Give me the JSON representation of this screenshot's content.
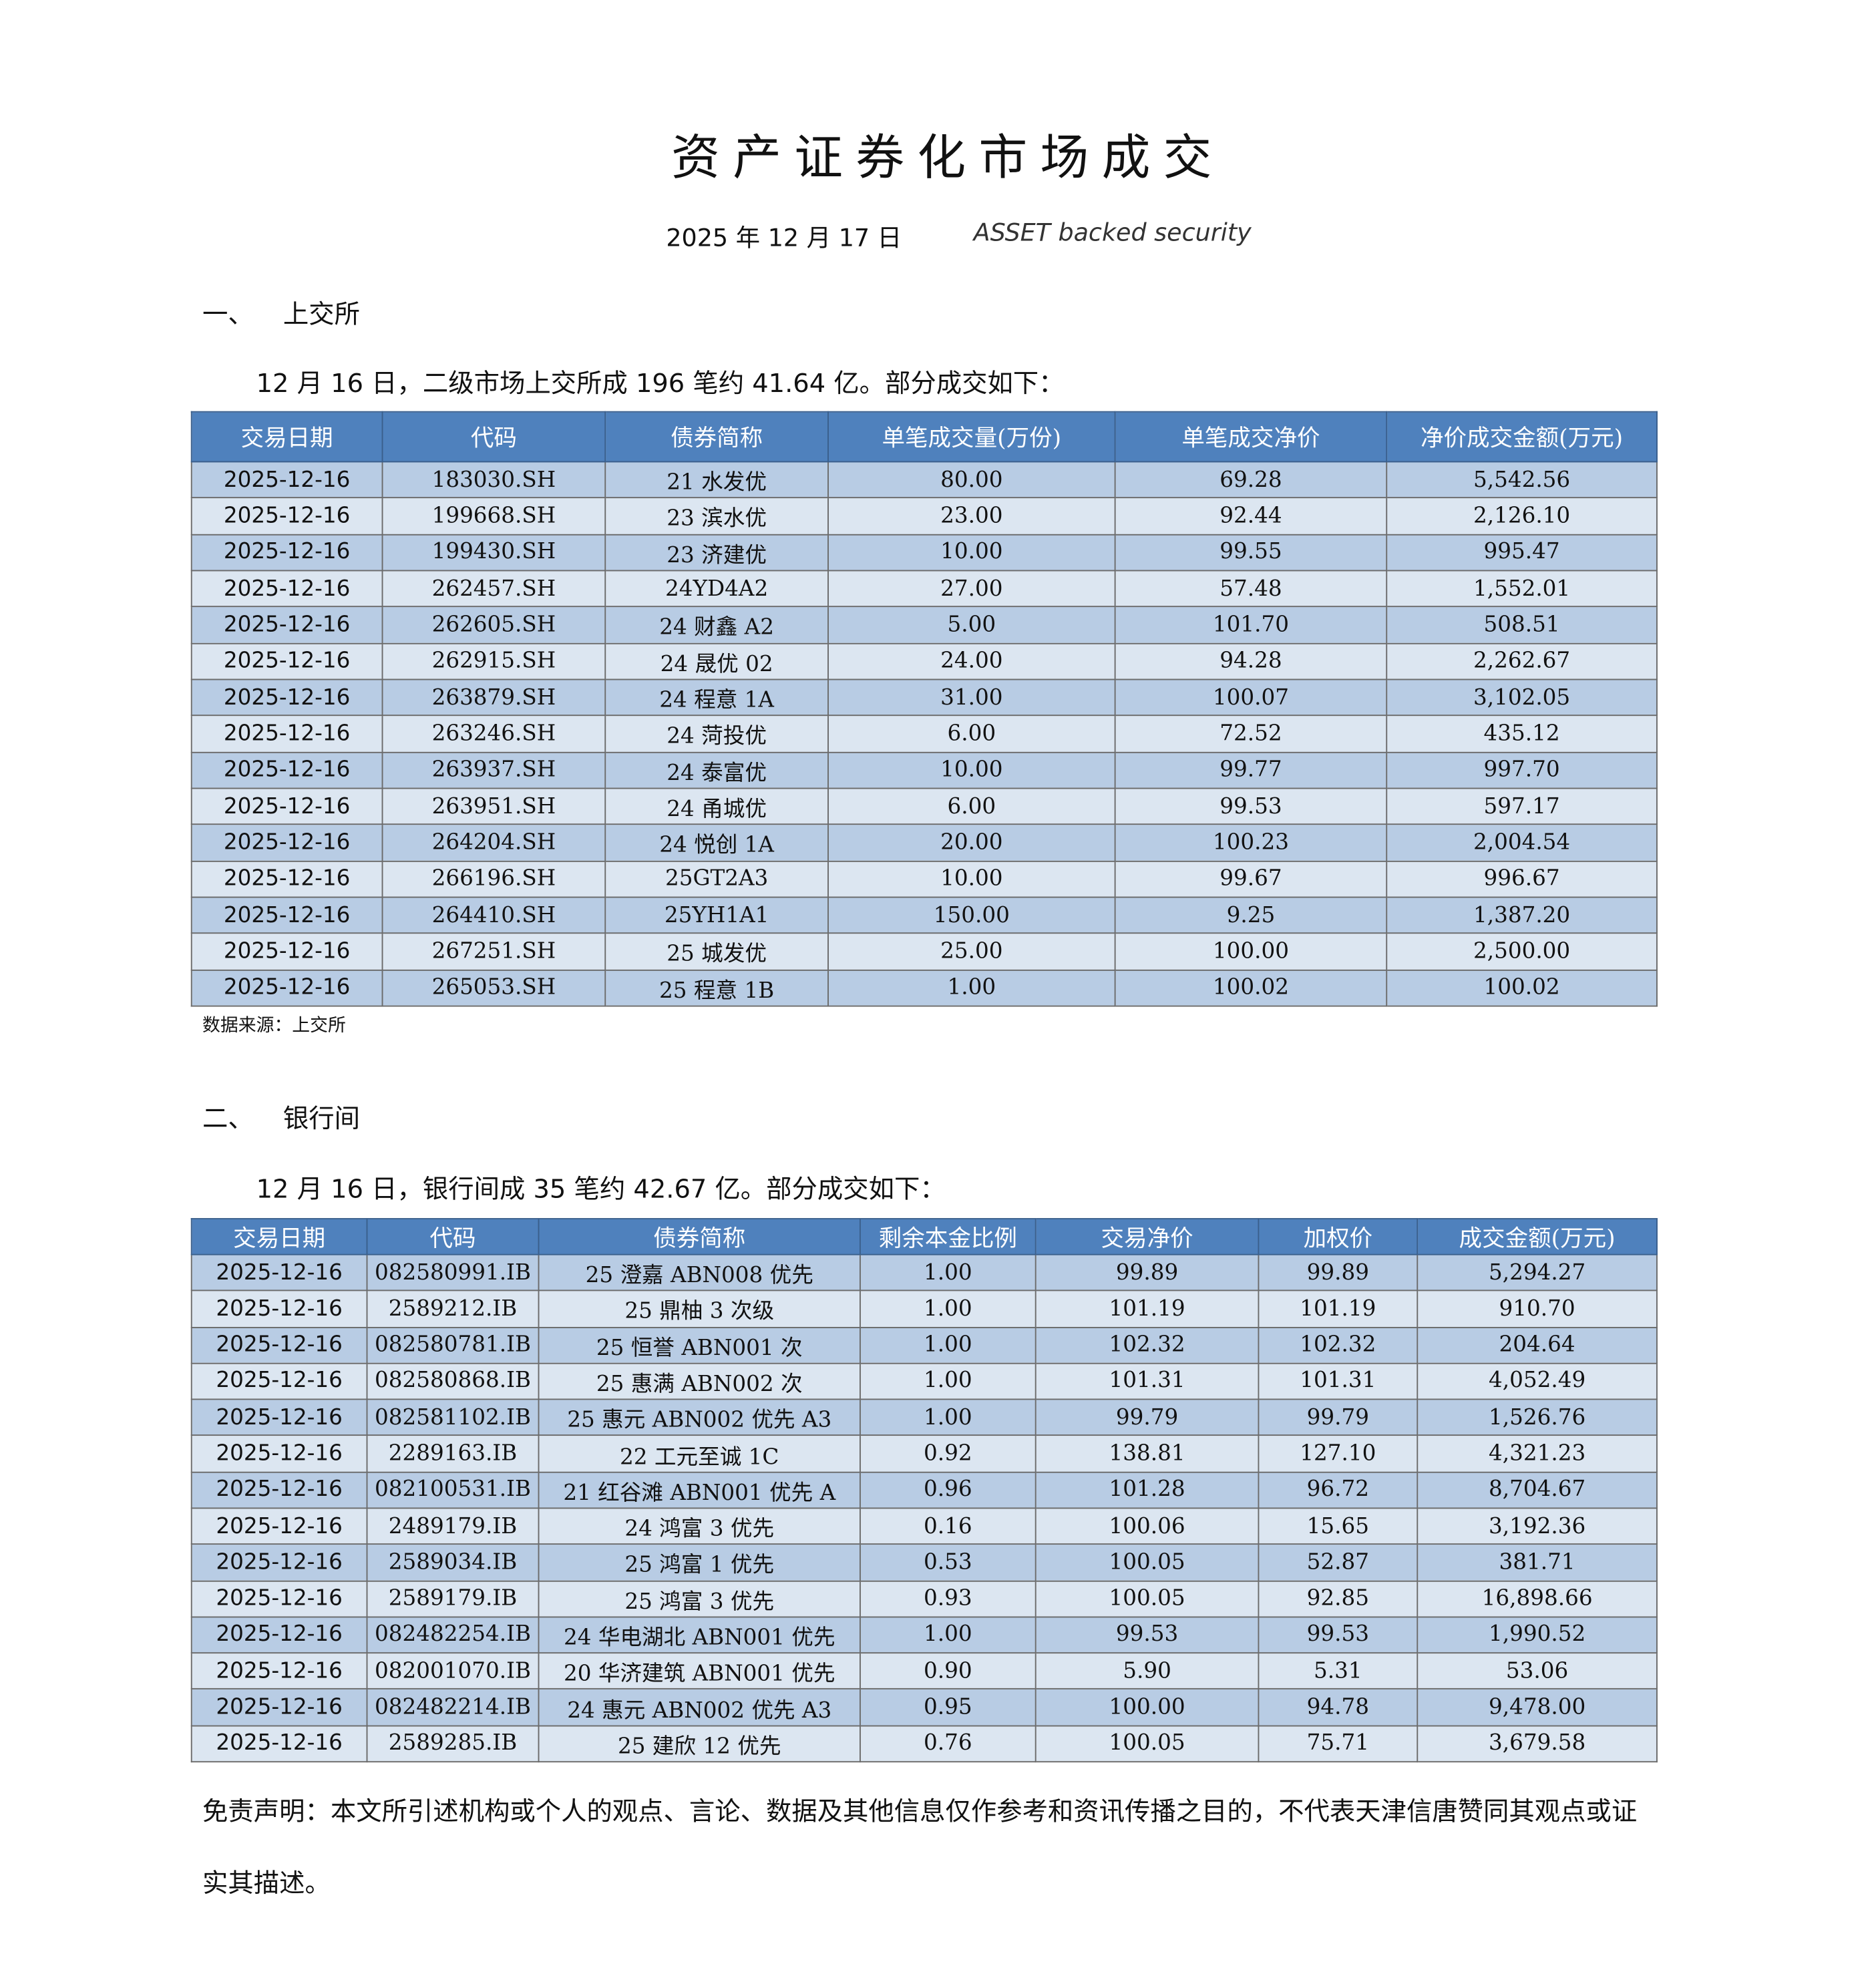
{
  "header": {
    "title": "资产证券化市场成交",
    "date": "2025 年 12 月 17 日",
    "subtitle": "ASSET backed security"
  },
  "sections": [
    {
      "number": "一、",
      "heading": "上交所",
      "summary": "12 月 16 日，二级市场上交所成 196 笔约 41.64 亿。部分成交如下：",
      "table": {
        "columns": [
          "交易日期",
          "代码",
          "债券简称",
          "单笔成交量(万份)",
          "单笔成交净价",
          "净价成交金额(万元)"
        ],
        "rows": [
          [
            "2025-12-16",
            "183030.SH",
            "21 水发优",
            "80.00",
            "69.28",
            "5,542.56"
          ],
          [
            "2025-12-16",
            "199668.SH",
            "23 滨水优",
            "23.00",
            "92.44",
            "2,126.10"
          ],
          [
            "2025-12-16",
            "199430.SH",
            "23 济建优",
            "10.00",
            "99.55",
            "995.47"
          ],
          [
            "2025-12-16",
            "262457.SH",
            "24YD4A2",
            "27.00",
            "57.48",
            "1,552.01"
          ],
          [
            "2025-12-16",
            "262605.SH",
            "24 财鑫 A2",
            "5.00",
            "101.70",
            "508.51"
          ],
          [
            "2025-12-16",
            "262915.SH",
            "24 晟优 02",
            "24.00",
            "94.28",
            "2,262.67"
          ],
          [
            "2025-12-16",
            "263879.SH",
            "24 程意 1A",
            "31.00",
            "100.07",
            "3,102.05"
          ],
          [
            "2025-12-16",
            "263246.SH",
            "24 菏投优",
            "6.00",
            "72.52",
            "435.12"
          ],
          [
            "2025-12-16",
            "263937.SH",
            "24 泰富优",
            "10.00",
            "99.77",
            "997.70"
          ],
          [
            "2025-12-16",
            "263951.SH",
            "24 甬城优",
            "6.00",
            "99.53",
            "597.17"
          ],
          [
            "2025-12-16",
            "264204.SH",
            "24 悦创 1A",
            "20.00",
            "100.23",
            "2,004.54"
          ],
          [
            "2025-12-16",
            "266196.SH",
            "25GT2A3",
            "10.00",
            "99.67",
            "996.67"
          ],
          [
            "2025-12-16",
            "264410.SH",
            "25YH1A1",
            "150.00",
            "9.25",
            "1,387.20"
          ],
          [
            "2025-12-16",
            "267251.SH",
            "25 城发优",
            "25.00",
            "100.00",
            "2,500.00"
          ],
          [
            "2025-12-16",
            "265053.SH",
            "25 程意 1B",
            "1.00",
            "100.02",
            "100.02"
          ]
        ]
      },
      "source": "数据来源：上交所"
    },
    {
      "number": "二、",
      "heading": "银行间",
      "summary": "12 月 16 日，银行间成 35 笔约 42.67 亿。部分成交如下：",
      "table": {
        "columns": [
          "交易日期",
          "代码",
          "债券简称",
          "剩余本金比例",
          "交易净价",
          "加权价",
          "成交金额(万元)"
        ],
        "rows": [
          [
            "2025-12-16",
            "082580991.IB",
            "25 澄嘉 ABN008 优先",
            "1.00",
            "99.89",
            "99.89",
            "5,294.27"
          ],
          [
            "2025-12-16",
            "2589212.IB",
            "25 鼎柚 3 次级",
            "1.00",
            "101.19",
            "101.19",
            "910.70"
          ],
          [
            "2025-12-16",
            "082580781.IB",
            "25 恒誉 ABN001 次",
            "1.00",
            "102.32",
            "102.32",
            "204.64"
          ],
          [
            "2025-12-16",
            "082580868.IB",
            "25 惠满 ABN002 次",
            "1.00",
            "101.31",
            "101.31",
            "4,052.49"
          ],
          [
            "2025-12-16",
            "082581102.IB",
            "25 惠元 ABN002 优先 A3",
            "1.00",
            "99.79",
            "99.79",
            "1,526.76"
          ],
          [
            "2025-12-16",
            "2289163.IB",
            "22 工元至诚 1C",
            "0.92",
            "138.81",
            "127.10",
            "4,321.23"
          ],
          [
            "2025-12-16",
            "082100531.IB",
            "21 红谷滩 ABN001 优先 A",
            "0.96",
            "101.28",
            "96.72",
            "8,704.67"
          ],
          [
            "2025-12-16",
            "2489179.IB",
            "24 鸿富 3 优先",
            "0.16",
            "100.06",
            "15.65",
            "3,192.36"
          ],
          [
            "2025-12-16",
            "2589034.IB",
            "25 鸿富 1 优先",
            "0.53",
            "100.05",
            "52.87",
            "381.71"
          ],
          [
            "2025-12-16",
            "2589179.IB",
            "25 鸿富 3 优先",
            "0.93",
            "100.05",
            "92.85",
            "16,898.66"
          ],
          [
            "2025-12-16",
            "082482254.IB",
            "24 华电湖北 ABN001 优先",
            "1.00",
            "99.53",
            "99.53",
            "1,990.52"
          ],
          [
            "2025-12-16",
            "082001070.IB",
            "20 华济建筑 ABN001 优先",
            "0.90",
            "5.90",
            "5.31",
            "53.06"
          ],
          [
            "2025-12-16",
            "082482214.IB",
            "24 惠元 ABN002 优先 A3",
            "0.95",
            "100.00",
            "94.78",
            "9,478.00"
          ],
          [
            "2025-12-16",
            "2589285.IB",
            "25 建欣 12 优先",
            "0.76",
            "100.05",
            "75.71",
            "3,679.58"
          ]
        ]
      }
    }
  ],
  "disclaimer": "免责声明：本文所引述机构或个人的观点、言论、数据及其他信息仅作参考和资讯传播之目的，不代表天津信唐赞同其观点或证实其描述。"
}
